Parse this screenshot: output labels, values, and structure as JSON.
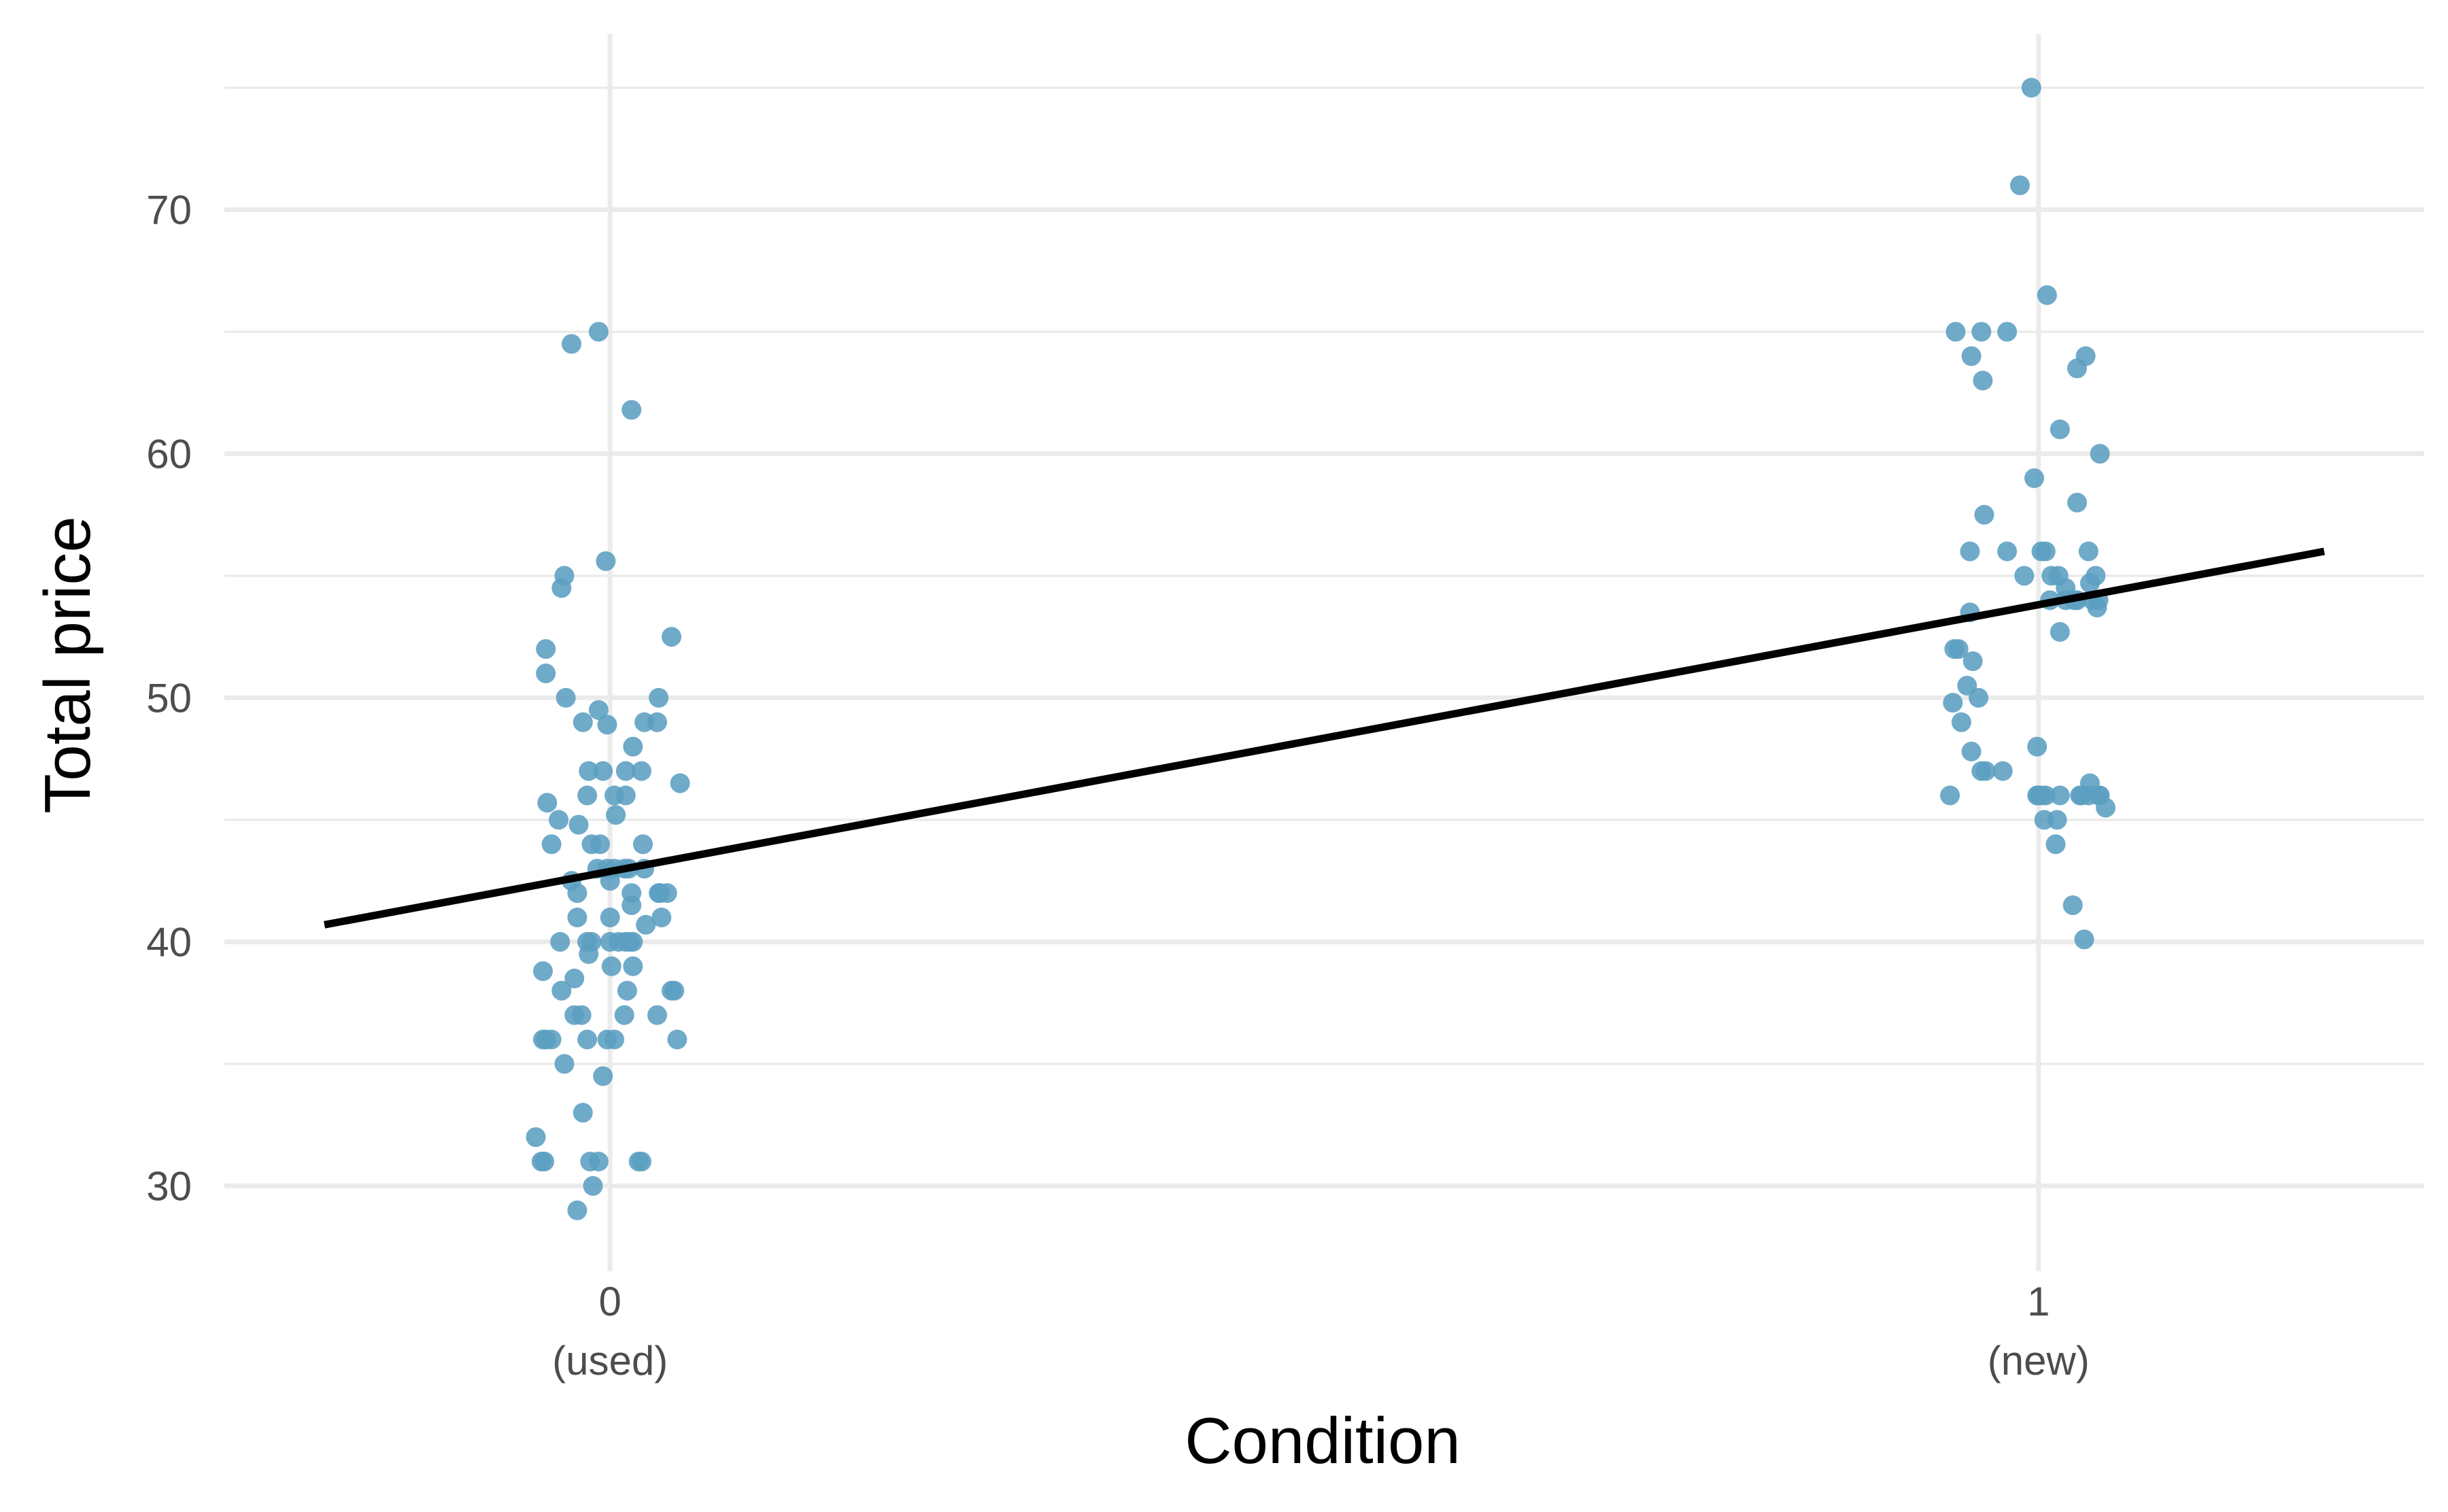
{
  "chart_data": {
    "type": "scatter",
    "title": "",
    "xlabel": "Condition",
    "ylabel": "Total price",
    "xlim": [
      -0.27,
      1.27
    ],
    "ylim": [
      26.5,
      77.2
    ],
    "grid": true,
    "legend": "none",
    "x_ticks": [
      {
        "value": 0,
        "label": "0",
        "sublabel": "(used)"
      },
      {
        "value": 1,
        "label": "1",
        "sublabel": "(new)"
      }
    ],
    "y_ticks": [
      30,
      40,
      50,
      60,
      70
    ],
    "y_minor_ticks": [
      35,
      45,
      55,
      65,
      75
    ],
    "point_color": "#5b9ec0",
    "line_color": "#000000",
    "regression_line": {
      "x": [
        -0.2,
        1.2
      ],
      "y": [
        40.7,
        56.0
      ]
    },
    "points": {
      "x": [
        -0.027,
        -0.008,
        0.015,
        -0.034,
        -0.003,
        -0.032,
        -0.045,
        -0.045,
        -0.031,
        -0.008,
        -0.019,
        -0.002,
        0.043,
        0.016,
        0.024,
        0.033,
        0.049,
        -0.005,
        0.022,
        0.011,
        -0.015,
        0.003,
        0.011,
        -0.016,
        -0.044,
        0.004,
        -0.036,
        -0.022,
        -0.041,
        0.034,
        0.023,
        -0.013,
        -0.009,
        0.024,
        0.01,
        -0.002,
        -0.023,
        -0.027,
        0.0,
        0.035,
        0.034,
        0.015,
        0.04,
        0.015,
        -0.023,
        0.036,
        0.025,
        0.014,
        0.0,
        -0.013,
        0.001,
        -0.025,
        -0.035,
        0.012,
        0.043,
        0.045,
        0.033,
        -0.034,
        -0.025,
        -0.02,
        0.01,
        -0.016,
        0.003,
        -0.002,
        0.047,
        -0.032,
        -0.005,
        -0.019,
        -0.014,
        0.022,
        0.02,
        -0.052,
        -0.046,
        -0.012,
        -0.023,
        0.0,
        -0.015,
        0.016,
        -0.047,
        -0.008,
        0.013,
        0.003,
        -0.007,
        -0.047,
        -0.016,
        -0.045,
        0.016,
        0.011,
        0.006,
        -0.041,
        -0.048,
        0.995,
        0.987,
        1.006,
        0.978,
        0.942,
        0.953,
        0.96,
        0.961,
        1.027,
        1.033,
        1.015,
        1.043,
        0.997,
        1.027,
        0.962,
        1.005,
        1.035,
        0.952,
        1.002,
        0.978,
        1.009,
        1.014,
        0.99,
        1.04,
        1.036,
        1.019,
        1.027,
        1.025,
        1.042,
        1.041,
        0.952,
        1.015,
        0.944,
        0.941,
        0.954,
        0.95,
        0.958,
        0.94,
        0.946,
        0.96,
        0.975,
        0.999,
        0.953,
        0.963,
        1.042,
        0.938,
        1.043,
        1.047,
        1.013,
        1.004,
        1.012,
        1.024,
        1.032,
        1.036,
        1.03,
        1.029,
        1.035,
        1.005,
        1.015,
        1.0,
        0.999,
        1.002,
        1.008,
        1.019,
        1.038
      ],
      "y": [
        64.5,
        65.0,
        61.8,
        54.5,
        55.6,
        55.0,
        52.0,
        51.0,
        50.0,
        49.5,
        49.0,
        48.9,
        52.5,
        48.0,
        49.0,
        49.0,
        46.5,
        47.0,
        47.0,
        47.0,
        47.0,
        46.0,
        46.0,
        46.0,
        45.7,
        45.2,
        45.0,
        44.8,
        44.0,
        50.0,
        44.0,
        44.0,
        43.0,
        43.0,
        43.0,
        43.0,
        42.0,
        42.5,
        42.5,
        42.0,
        42.0,
        42.0,
        42.0,
        41.5,
        41.0,
        41.0,
        40.7,
        40.0,
        40.0,
        40.0,
        39.0,
        38.5,
        40.0,
        38.0,
        38.0,
        38.0,
        37.0,
        38.0,
        37.0,
        37.0,
        37.0,
        36.0,
        36.0,
        36.0,
        36.0,
        35.0,
        34.5,
        33.0,
        31.0,
        31.0,
        31.0,
        32.0,
        31.0,
        30.0,
        29.0,
        41.0,
        39.5,
        40.0,
        38.8,
        31.0,
        43.0,
        43.0,
        44.0,
        36.0,
        40.0,
        36.0,
        39.0,
        40.0,
        40.0,
        36.0,
        31.0,
        75.0,
        71.0,
        66.5,
        65.0,
        65.0,
        64.0,
        65.0,
        63.0,
        63.5,
        64.0,
        61.0,
        60.0,
        59.0,
        58.0,
        57.5,
        56.0,
        56.0,
        56.0,
        56.0,
        56.0,
        55.0,
        55.0,
        55.0,
        55.0,
        54.7,
        54.0,
        54.0,
        54.0,
        54.0,
        53.7,
        53.5,
        52.7,
        52.0,
        52.0,
        51.5,
        50.5,
        50.0,
        49.8,
        49.0,
        47.0,
        47.0,
        48.0,
        47.8,
        47.0,
        46.0,
        46.0,
        46.0,
        45.5,
        45.0,
        45.0,
        44.0,
        41.5,
        40.1,
        46.5,
        46.0,
        46.0,
        46.0,
        46.0,
        46.0,
        46.0,
        46.0,
        46.0,
        54.0,
        54.5,
        54.0
      ]
    }
  }
}
